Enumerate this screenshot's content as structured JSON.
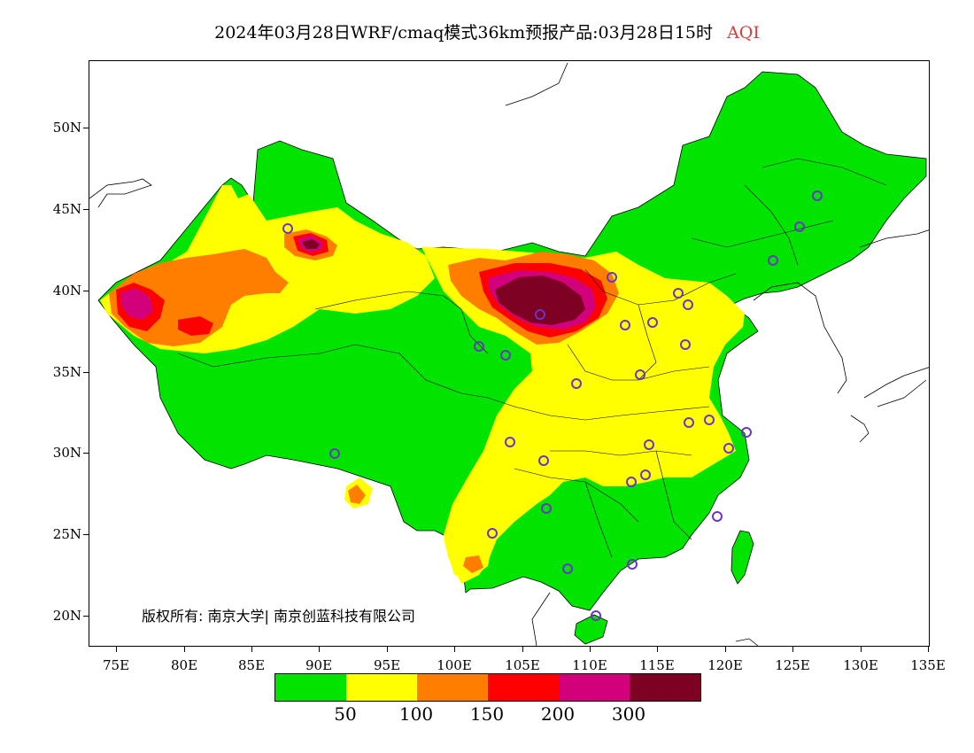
{
  "title": {
    "main": "2024年03月28日WRF/cmaq模式36km预报产品:03月28日15时",
    "variable": "AQI",
    "variable_color": "#e23a3a"
  },
  "axes": {
    "lat_labels": [
      "50N",
      "45N",
      "40N",
      "35N",
      "30N",
      "25N",
      "20N"
    ],
    "lon_labels": [
      "75E",
      "80E",
      "85E",
      "90E",
      "95E",
      "100E",
      "105E",
      "110E",
      "115E",
      "120E",
      "125E",
      "130E",
      "135E"
    ]
  },
  "copyright": "版权所有: 南京大学| 南京创蓝科技有限公司",
  "legend": {
    "colors": [
      "#00e400",
      "#ffff00",
      "#ff7e00",
      "#ff0000",
      "#d2007a",
      "#7e0023"
    ],
    "labels": [
      "50",
      "100",
      "150",
      "200",
      "300"
    ]
  },
  "colors": {
    "good": "#00e400",
    "moderate": "#ffff00",
    "usg": "#ff7e00",
    "unhealthy": "#ff0000",
    "very_unhealthy": "#d2007a",
    "hazardous": "#7e0023",
    "station_marker": "#6a35c8"
  }
}
